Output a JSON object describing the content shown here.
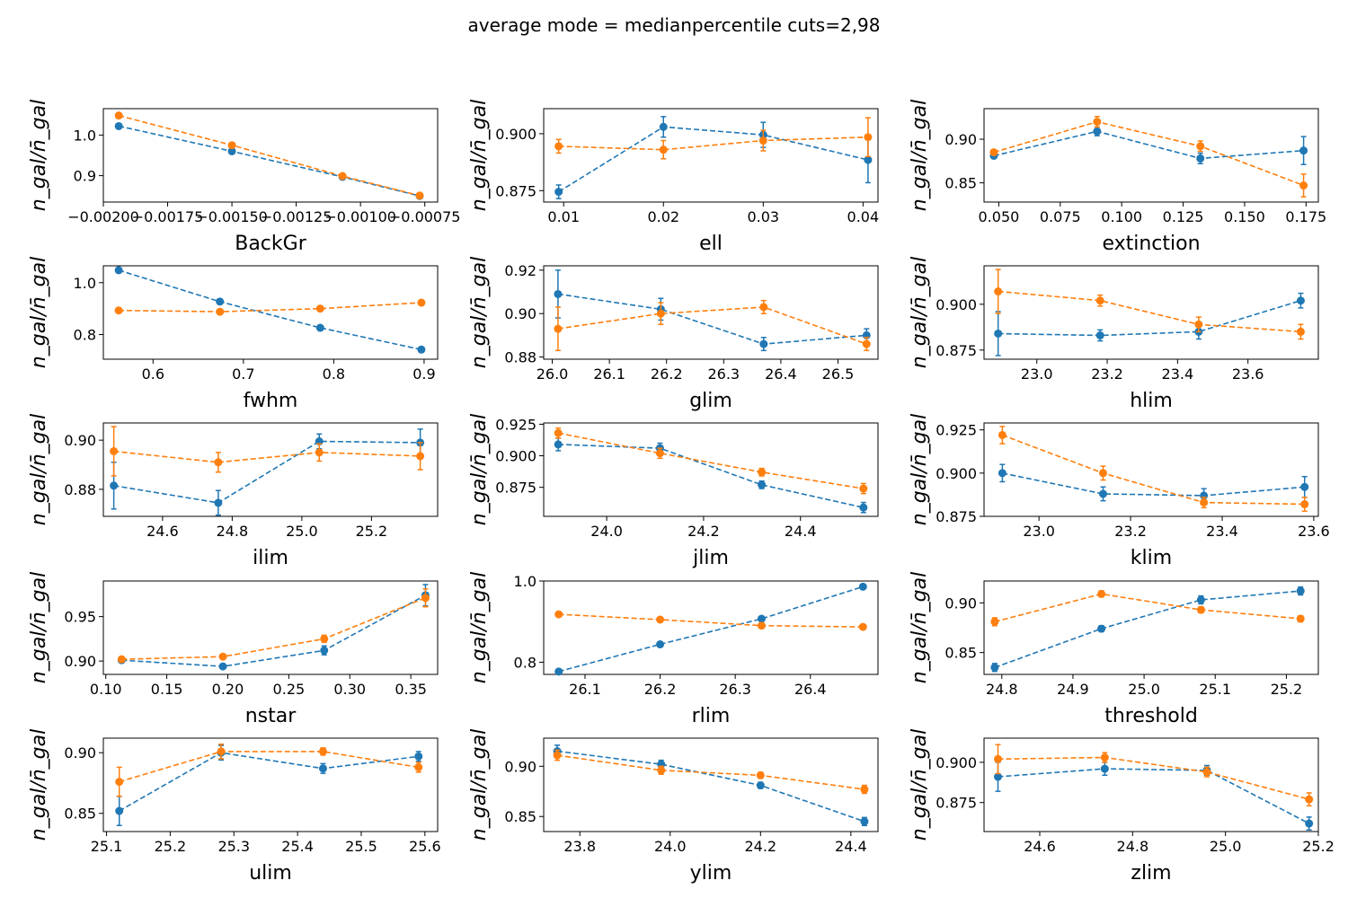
{
  "figure": {
    "title": "average mode = medianpercentile cuts=2,98",
    "ylabel": "n_gal/n̄_gal",
    "series_colors": [
      "#1f77b4",
      "#ff7f0e"
    ]
  },
  "chart_data": [
    {
      "type": "line",
      "xlabel": "BackGr",
      "xlim": [
        -0.002,
        -0.0007
      ],
      "ylim": [
        0.835,
        1.065
      ],
      "xticks": [
        -0.002,
        -0.00175,
        -0.0015,
        -0.00125,
        -0.001,
        -0.00075
      ],
      "xtick_labels": [
        "−0.00200",
        "−0.00175",
        "−0.00150",
        "−0.00125",
        "−0.00100",
        "−0.00075"
      ],
      "yticks": [
        0.9,
        1.0
      ],
      "ytick_labels": [
        "0.9",
        "1.0"
      ],
      "series": [
        {
          "x": [
            -0.00194,
            -0.0015,
            -0.00107,
            -0.00077
          ],
          "y": [
            1.022,
            0.96,
            0.897,
            0.85
          ],
          "err": [
            0.004,
            0.003,
            0.003,
            0.003
          ]
        },
        {
          "x": [
            -0.00194,
            -0.0015,
            -0.00107,
            -0.00077
          ],
          "y": [
            1.048,
            0.975,
            0.899,
            0.851
          ],
          "err": [
            0.004,
            0.003,
            0.003,
            0.003
          ]
        }
      ]
    },
    {
      "type": "line",
      "xlabel": "ell",
      "xlim": [
        0.008,
        0.0415
      ],
      "ylim": [
        0.87,
        0.911
      ],
      "xticks": [
        0.01,
        0.02,
        0.03,
        0.04
      ],
      "xtick_labels": [
        "0.01",
        "0.02",
        "0.03",
        "0.04"
      ],
      "yticks": [
        0.875,
        0.9
      ],
      "ytick_labels": [
        "0.875",
        "0.900"
      ],
      "series": [
        {
          "x": [
            0.0095,
            0.02,
            0.03,
            0.0405
          ],
          "y": [
            0.8745,
            0.903,
            0.8995,
            0.8885
          ],
          "err": [
            0.003,
            0.0045,
            0.0055,
            0.01
          ]
        },
        {
          "x": [
            0.0095,
            0.02,
            0.03,
            0.0405
          ],
          "y": [
            0.8945,
            0.893,
            0.897,
            0.8985
          ],
          "err": [
            0.003,
            0.004,
            0.0045,
            0.0085
          ]
        }
      ]
    },
    {
      "type": "line",
      "xlabel": "extinction",
      "xlim": [
        0.044,
        0.18
      ],
      "ylim": [
        0.828,
        0.935
      ],
      "xticks": [
        0.05,
        0.075,
        0.1,
        0.125,
        0.15,
        0.175
      ],
      "xtick_labels": [
        "0.050",
        "0.075",
        "0.100",
        "0.125",
        "0.150",
        "0.175"
      ],
      "yticks": [
        0.85,
        0.9
      ],
      "ytick_labels": [
        "0.85",
        "0.90"
      ],
      "series": [
        {
          "x": [
            0.048,
            0.09,
            0.132,
            0.174
          ],
          "y": [
            0.881,
            0.909,
            0.878,
            0.887
          ],
          "err": [
            0.003,
            0.005,
            0.006,
            0.016
          ]
        },
        {
          "x": [
            0.048,
            0.09,
            0.132,
            0.174
          ],
          "y": [
            0.885,
            0.92,
            0.892,
            0.847
          ],
          "err": [
            0.003,
            0.006,
            0.006,
            0.013
          ]
        }
      ]
    },
    {
      "type": "line",
      "xlabel": "fwhm",
      "xlim": [
        0.545,
        0.915
      ],
      "ylim": [
        0.705,
        1.065
      ],
      "xticks": [
        0.6,
        0.7,
        0.8,
        0.9
      ],
      "xtick_labels": [
        "0.6",
        "0.7",
        "0.8",
        "0.9"
      ],
      "yticks": [
        0.8,
        1.0
      ],
      "ytick_labels": [
        "0.8",
        "1.0"
      ],
      "series": [
        {
          "x": [
            0.562,
            0.674,
            0.785,
            0.897
          ],
          "y": [
            1.048,
            0.927,
            0.826,
            0.742
          ],
          "err": [
            0.003,
            0.003,
            0.003,
            0.003
          ]
        },
        {
          "x": [
            0.562,
            0.674,
            0.785,
            0.897
          ],
          "y": [
            0.893,
            0.888,
            0.9,
            0.923
          ],
          "err": [
            0.003,
            0.003,
            0.003,
            0.003
          ]
        }
      ]
    },
    {
      "type": "line",
      "xlabel": "glim",
      "xlim": [
        25.985,
        26.57
      ],
      "ylim": [
        0.879,
        0.922
      ],
      "xticks": [
        26.0,
        26.1,
        26.2,
        26.3,
        26.4,
        26.5
      ],
      "xtick_labels": [
        "26.0",
        "26.1",
        "26.2",
        "26.3",
        "26.4",
        "26.5"
      ],
      "yticks": [
        0.88,
        0.9,
        0.92
      ],
      "ytick_labels": [
        "0.88",
        "0.90",
        "0.92"
      ],
      "series": [
        {
          "x": [
            26.01,
            26.19,
            26.37,
            26.55
          ],
          "y": [
            0.909,
            0.902,
            0.886,
            0.89
          ],
          "err": [
            0.011,
            0.005,
            0.003,
            0.003
          ]
        },
        {
          "x": [
            26.01,
            26.19,
            26.37,
            26.55
          ],
          "y": [
            0.893,
            0.9,
            0.903,
            0.886
          ],
          "err": [
            0.01,
            0.005,
            0.003,
            0.003
          ]
        }
      ]
    },
    {
      "type": "line",
      "xlabel": "hlim",
      "xlim": [
        22.85,
        23.8
      ],
      "ylim": [
        0.87,
        0.921
      ],
      "xticks": [
        23.0,
        23.2,
        23.4,
        23.6
      ],
      "xtick_labels": [
        "23.0",
        "23.2",
        "23.4",
        "23.6"
      ],
      "yticks": [
        0.875,
        0.9
      ],
      "ytick_labels": [
        "0.875",
        "0.900"
      ],
      "series": [
        {
          "x": [
            22.89,
            23.18,
            23.46,
            23.75
          ],
          "y": [
            0.884,
            0.883,
            0.885,
            0.902
          ],
          "err": [
            0.012,
            0.003,
            0.004,
            0.004
          ]
        },
        {
          "x": [
            22.89,
            23.18,
            23.46,
            23.75
          ],
          "y": [
            0.907,
            0.902,
            0.889,
            0.885
          ],
          "err": [
            0.012,
            0.003,
            0.004,
            0.004
          ]
        }
      ]
    },
    {
      "type": "line",
      "xlabel": "ilim",
      "xlim": [
        24.43,
        25.39
      ],
      "ylim": [
        0.869,
        0.907
      ],
      "xticks": [
        24.6,
        24.8,
        25.0,
        25.2
      ],
      "xtick_labels": [
        "24.6",
        "24.8",
        "25.0",
        "25.2"
      ],
      "yticks": [
        0.88,
        0.9
      ],
      "ytick_labels": [
        "0.88",
        "0.90"
      ],
      "series": [
        {
          "x": [
            24.46,
            24.76,
            25.05,
            25.34
          ],
          "y": [
            0.8815,
            0.8745,
            0.8995,
            0.899
          ],
          "err": [
            0.0095,
            0.005,
            0.003,
            0.0055
          ]
        },
        {
          "x": [
            24.46,
            24.76,
            25.05,
            25.34
          ],
          "y": [
            0.8955,
            0.891,
            0.895,
            0.8935
          ],
          "err": [
            0.01,
            0.004,
            0.0035,
            0.0055
          ]
        }
      ]
    },
    {
      "type": "line",
      "xlabel": "jlim",
      "xlim": [
        23.87,
        24.56
      ],
      "ylim": [
        0.852,
        0.926
      ],
      "xticks": [
        24.0,
        24.2,
        24.4
      ],
      "xtick_labels": [
        "24.0",
        "24.2",
        "24.4"
      ],
      "yticks": [
        0.875,
        0.9,
        0.925
      ],
      "ytick_labels": [
        "0.875",
        "0.900",
        "0.925"
      ],
      "series": [
        {
          "x": [
            23.9,
            24.11,
            24.32,
            24.53
          ],
          "y": [
            0.909,
            0.906,
            0.877,
            0.859
          ],
          "err": [
            0.005,
            0.004,
            0.003,
            0.004
          ]
        },
        {
          "x": [
            23.9,
            24.11,
            24.32,
            24.53
          ],
          "y": [
            0.918,
            0.902,
            0.887,
            0.874
          ],
          "err": [
            0.004,
            0.004,
            0.003,
            0.004
          ]
        }
      ]
    },
    {
      "type": "line",
      "xlabel": "klim",
      "xlim": [
        22.88,
        23.61
      ],
      "ylim": [
        0.875,
        0.929
      ],
      "xticks": [
        23.0,
        23.2,
        23.4,
        23.6
      ],
      "xtick_labels": [
        "23.0",
        "23.2",
        "23.4",
        "23.6"
      ],
      "yticks": [
        0.875,
        0.9,
        0.925
      ],
      "ytick_labels": [
        "0.875",
        "0.900",
        "0.925"
      ],
      "series": [
        {
          "x": [
            22.92,
            23.14,
            23.36,
            23.58
          ],
          "y": [
            0.9,
            0.888,
            0.887,
            0.892
          ],
          "err": [
            0.005,
            0.004,
            0.004,
            0.006
          ]
        },
        {
          "x": [
            22.92,
            23.14,
            23.36,
            23.58
          ],
          "y": [
            0.922,
            0.9,
            0.883,
            0.882
          ],
          "err": [
            0.005,
            0.004,
            0.003,
            0.004
          ]
        }
      ]
    },
    {
      "type": "line",
      "xlabel": "nstar",
      "xlim": [
        0.098,
        0.372
      ],
      "ylim": [
        0.885,
        0.99
      ],
      "xticks": [
        0.1,
        0.15,
        0.2,
        0.25,
        0.3,
        0.35
      ],
      "xtick_labels": [
        "0.10",
        "0.15",
        "0.20",
        "0.25",
        "0.30",
        "0.35"
      ],
      "yticks": [
        0.9,
        0.95
      ],
      "ytick_labels": [
        "0.90",
        "0.95"
      ],
      "series": [
        {
          "x": [
            0.113,
            0.196,
            0.279,
            0.362
          ],
          "y": [
            0.901,
            0.894,
            0.912,
            0.974
          ],
          "err": [
            0.002,
            0.002,
            0.005,
            0.012
          ]
        },
        {
          "x": [
            0.113,
            0.196,
            0.279,
            0.362
          ],
          "y": [
            0.902,
            0.905,
            0.925,
            0.971
          ],
          "err": [
            0.002,
            0.002,
            0.004,
            0.01
          ]
        }
      ]
    },
    {
      "type": "line",
      "xlabel": "rlim",
      "xlim": [
        26.045,
        26.49
      ],
      "ylim": [
        0.77,
        1.0
      ],
      "xticks": [
        26.1,
        26.2,
        26.3,
        26.4
      ],
      "xtick_labels": [
        "26.1",
        "26.2",
        "26.3",
        "26.4"
      ],
      "yticks": [
        0.8,
        1.0
      ],
      "ytick_labels": [
        "0.8",
        "1.0"
      ],
      "series": [
        {
          "x": [
            26.065,
            26.2,
            26.335,
            26.47
          ],
          "y": [
            0.777,
            0.844,
            0.907,
            0.986
          ],
          "err": [
            0.002,
            0.002,
            0.002,
            0.003
          ]
        },
        {
          "x": [
            26.065,
            26.2,
            26.335,
            26.47
          ],
          "y": [
            0.918,
            0.905,
            0.89,
            0.887
          ],
          "err": [
            0.002,
            0.002,
            0.002,
            0.002
          ]
        }
      ]
    },
    {
      "type": "line",
      "xlabel": "threshold",
      "xlim": [
        24.775,
        25.245
      ],
      "ylim": [
        0.828,
        0.922
      ],
      "xticks": [
        24.8,
        24.9,
        25.0,
        25.1,
        25.2
      ],
      "xtick_labels": [
        "24.8",
        "24.9",
        "25.0",
        "25.1",
        "25.2"
      ],
      "yticks": [
        0.85,
        0.9
      ],
      "ytick_labels": [
        "0.85",
        "0.90"
      ],
      "series": [
        {
          "x": [
            24.79,
            24.94,
            25.08,
            25.22
          ],
          "y": [
            0.835,
            0.874,
            0.903,
            0.912
          ],
          "err": [
            0.004,
            0.003,
            0.004,
            0.004
          ]
        },
        {
          "x": [
            24.79,
            24.94,
            25.08,
            25.22
          ],
          "y": [
            0.881,
            0.909,
            0.893,
            0.884
          ],
          "err": [
            0.004,
            0.003,
            0.003,
            0.003
          ]
        }
      ]
    },
    {
      "type": "line",
      "xlabel": "ulim",
      "xlim": [
        25.095,
        25.62
      ],
      "ylim": [
        0.835,
        0.912
      ],
      "xticks": [
        25.1,
        25.2,
        25.3,
        25.4,
        25.5,
        25.6
      ],
      "xtick_labels": [
        "25.1",
        "25.2",
        "25.3",
        "25.4",
        "25.5",
        "25.6"
      ],
      "yticks": [
        0.85,
        0.9
      ],
      "ytick_labels": [
        "0.85",
        "0.90"
      ],
      "series": [
        {
          "x": [
            25.12,
            25.28,
            25.44,
            25.59
          ],
          "y": [
            0.852,
            0.9,
            0.887,
            0.897
          ],
          "err": [
            0.012,
            0.006,
            0.004,
            0.004
          ]
        },
        {
          "x": [
            25.12,
            25.28,
            25.44,
            25.59
          ],
          "y": [
            0.876,
            0.901,
            0.901,
            0.888
          ],
          "err": [
            0.012,
            0.006,
            0.003,
            0.004
          ]
        }
      ]
    },
    {
      "type": "line",
      "xlabel": "ylim",
      "xlim": [
        23.72,
        24.46
      ],
      "ylim": [
        0.835,
        0.928
      ],
      "xticks": [
        23.8,
        24.0,
        24.2,
        24.4
      ],
      "xtick_labels": [
        "23.8",
        "24.0",
        "24.2",
        "24.4"
      ],
      "yticks": [
        0.85,
        0.9
      ],
      "ytick_labels": [
        "0.85",
        "0.90"
      ],
      "series": [
        {
          "x": [
            23.75,
            23.98,
            24.2,
            24.43
          ],
          "y": [
            0.915,
            0.902,
            0.881,
            0.845
          ],
          "err": [
            0.006,
            0.004,
            0.003,
            0.004
          ]
        },
        {
          "x": [
            23.75,
            23.98,
            24.2,
            24.43
          ],
          "y": [
            0.911,
            0.896,
            0.891,
            0.877
          ],
          "err": [
            0.005,
            0.004,
            0.003,
            0.004
          ]
        }
      ]
    },
    {
      "type": "line",
      "xlabel": "zlim",
      "xlim": [
        24.48,
        25.2
      ],
      "ylim": [
        0.857,
        0.915
      ],
      "xticks": [
        24.6,
        24.8,
        25.0,
        25.2
      ],
      "xtick_labels": [
        "24.6",
        "24.8",
        "25.0",
        "25.2"
      ],
      "yticks": [
        0.875,
        0.9
      ],
      "ytick_labels": [
        "0.875",
        "0.900"
      ],
      "series": [
        {
          "x": [
            24.51,
            24.74,
            24.96,
            25.18
          ],
          "y": [
            0.891,
            0.896,
            0.895,
            0.862
          ],
          "err": [
            0.009,
            0.004,
            0.003,
            0.004
          ]
        },
        {
          "x": [
            24.51,
            24.74,
            24.96,
            25.18
          ],
          "y": [
            0.902,
            0.903,
            0.894,
            0.877
          ],
          "err": [
            0.009,
            0.003,
            0.003,
            0.004
          ]
        }
      ]
    }
  ]
}
